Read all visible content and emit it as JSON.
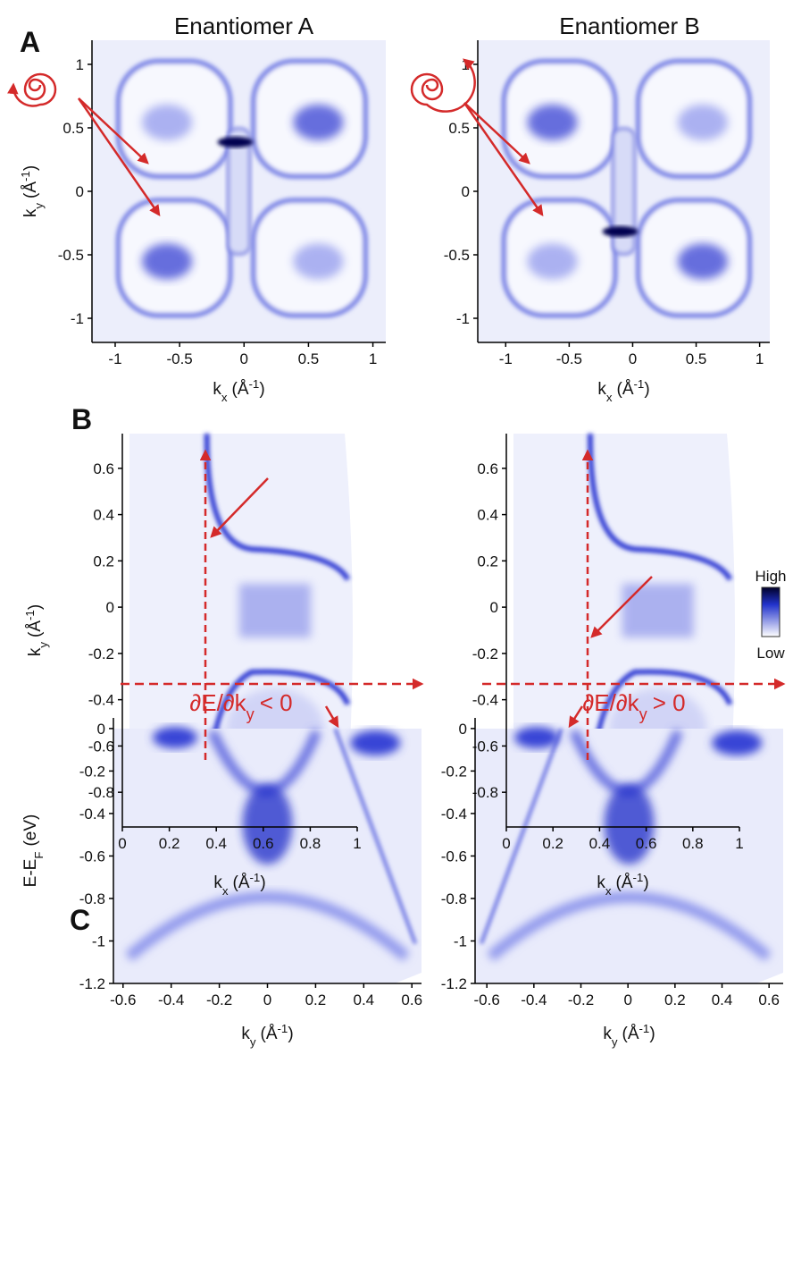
{
  "panel_labels": [
    "A",
    "B",
    "C"
  ],
  "colorbar": {
    "high": "High",
    "low": "Low"
  },
  "chart_data": [
    {
      "type": "heatmap",
      "title": "Enantiomer A",
      "xlim": [
        -1.18,
        1.1
      ],
      "ylim": [
        -1.19,
        1.19
      ],
      "xticks": [
        -1,
        -0.5,
        0,
        0.5,
        1
      ],
      "yticks": [
        -1,
        -0.5,
        0,
        0.5,
        1
      ],
      "xlabel": [
        "k",
        "x",
        "(Å",
        "-1",
        ")"
      ],
      "ylabel": [
        "k",
        "y",
        "(Å",
        "-1",
        ")"
      ]
    },
    {
      "type": "heatmap",
      "title": "Enantiomer B",
      "xlim": [
        -1.22,
        1.08
      ],
      "ylim": [
        -1.19,
        1.19
      ],
      "xticks": [
        -1,
        -0.5,
        0,
        0.5,
        1
      ],
      "yticks": [
        -1,
        -0.5,
        0,
        0.5,
        1
      ],
      "xlabel": [
        "k",
        "x",
        "(Å",
        "-1",
        ")"
      ]
    },
    {
      "type": "heatmap",
      "xlim": [
        0,
        1
      ],
      "ylim": [
        -0.95,
        0.75
      ],
      "xticks": [
        0,
        0.2,
        0.4,
        0.6,
        0.8,
        1
      ],
      "yticks": [
        -0.8,
        -0.6,
        -0.4,
        -0.2,
        0,
        0.2,
        0.4,
        0.6
      ],
      "xlabel": [
        "k",
        "x",
        "(Å",
        "-1",
        ")"
      ],
      "ylabel": [
        "k",
        "y",
        "(Å",
        "-1",
        ")"
      ]
    },
    {
      "type": "heatmap",
      "xlim": [
        0,
        1
      ],
      "ylim": [
        -0.95,
        0.75
      ],
      "xticks": [
        0,
        0.2,
        0.4,
        0.6,
        0.8,
        1
      ],
      "yticks": [
        -0.8,
        -0.6,
        -0.4,
        -0.2,
        0,
        0.2,
        0.4,
        0.6
      ],
      "xlabel": [
        "k",
        "x",
        "(Å",
        "-1",
        ")"
      ]
    },
    {
      "type": "heatmap",
      "annotation": [
        "∂E/∂k",
        "y",
        "< 0"
      ],
      "xlim": [
        -0.64,
        0.64
      ],
      "ylim": [
        -1.2,
        0.05
      ],
      "xticks": [
        -0.6,
        -0.4,
        -0.2,
        0,
        0.2,
        0.4,
        0.6
      ],
      "yticks": [
        -1.2,
        -1,
        -0.8,
        -0.6,
        -0.4,
        -0.2,
        0
      ],
      "xlabel": [
        "k",
        "y",
        "(Å",
        "-1",
        ")"
      ],
      "ylabel": [
        "E-E",
        "F",
        "(eV)"
      ]
    },
    {
      "type": "heatmap",
      "annotation": [
        "∂E/∂k",
        "y",
        "> 0"
      ],
      "xlim": [
        -0.65,
        0.66
      ],
      "ylim": [
        -1.2,
        0.05
      ],
      "xticks": [
        -0.6,
        -0.4,
        -0.2,
        0,
        0.2,
        0.4,
        0.6
      ],
      "yticks": [
        -1.2,
        -1,
        -0.8,
        -0.6,
        -0.4,
        -0.2,
        0
      ],
      "xlabel": [
        "k",
        "y",
        "(Å",
        "-1",
        ")"
      ]
    }
  ]
}
